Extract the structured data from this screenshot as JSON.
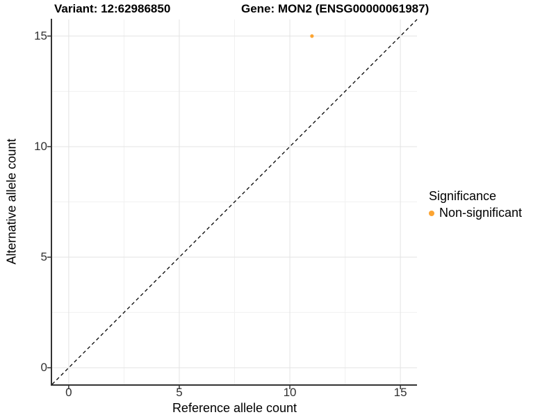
{
  "header": {
    "variant_title": "Variant: 12:62986850",
    "gene_title": "Gene: MON2 (ENSG00000061987)"
  },
  "axes": {
    "x_label": "Reference allele count",
    "y_label": "Alternative allele count"
  },
  "legend": {
    "title": "Significance",
    "items": [
      {
        "label": "Non-significant",
        "color": "#FCA432",
        "marker": "circle-icon"
      }
    ]
  },
  "chart_data": {
    "type": "scatter",
    "title": "Variant: 12:62986850    Gene: MON2 (ENSG00000061987)",
    "xlabel": "Reference allele count",
    "ylabel": "Alternative allele count",
    "xlim": [
      -0.75,
      15.75
    ],
    "ylim": [
      -0.75,
      15.75
    ],
    "x_ticks": [
      0,
      5,
      10,
      15
    ],
    "y_ticks": [
      0,
      5,
      10,
      15
    ],
    "minor_gridlines": [
      2.5,
      7.5,
      12.5
    ],
    "grid": true,
    "legend_position": "right",
    "series": [
      {
        "name": "Non-significant",
        "points": [
          {
            "x": 11,
            "y": 15
          }
        ]
      }
    ],
    "reference_line": {
      "style": "dashed",
      "from": [
        -0.75,
        -0.75
      ],
      "to": [
        15.75,
        15.75
      ],
      "meaning": "y = x identity line"
    },
    "point_radius_px": 2.6,
    "colors": {
      "point": "#FCA432",
      "grid_major": "#E3E3E3",
      "grid_minor": "#F1F1F1",
      "axis": "#333333",
      "dashed_line": "#000000",
      "tick_text": "#303030"
    }
  }
}
